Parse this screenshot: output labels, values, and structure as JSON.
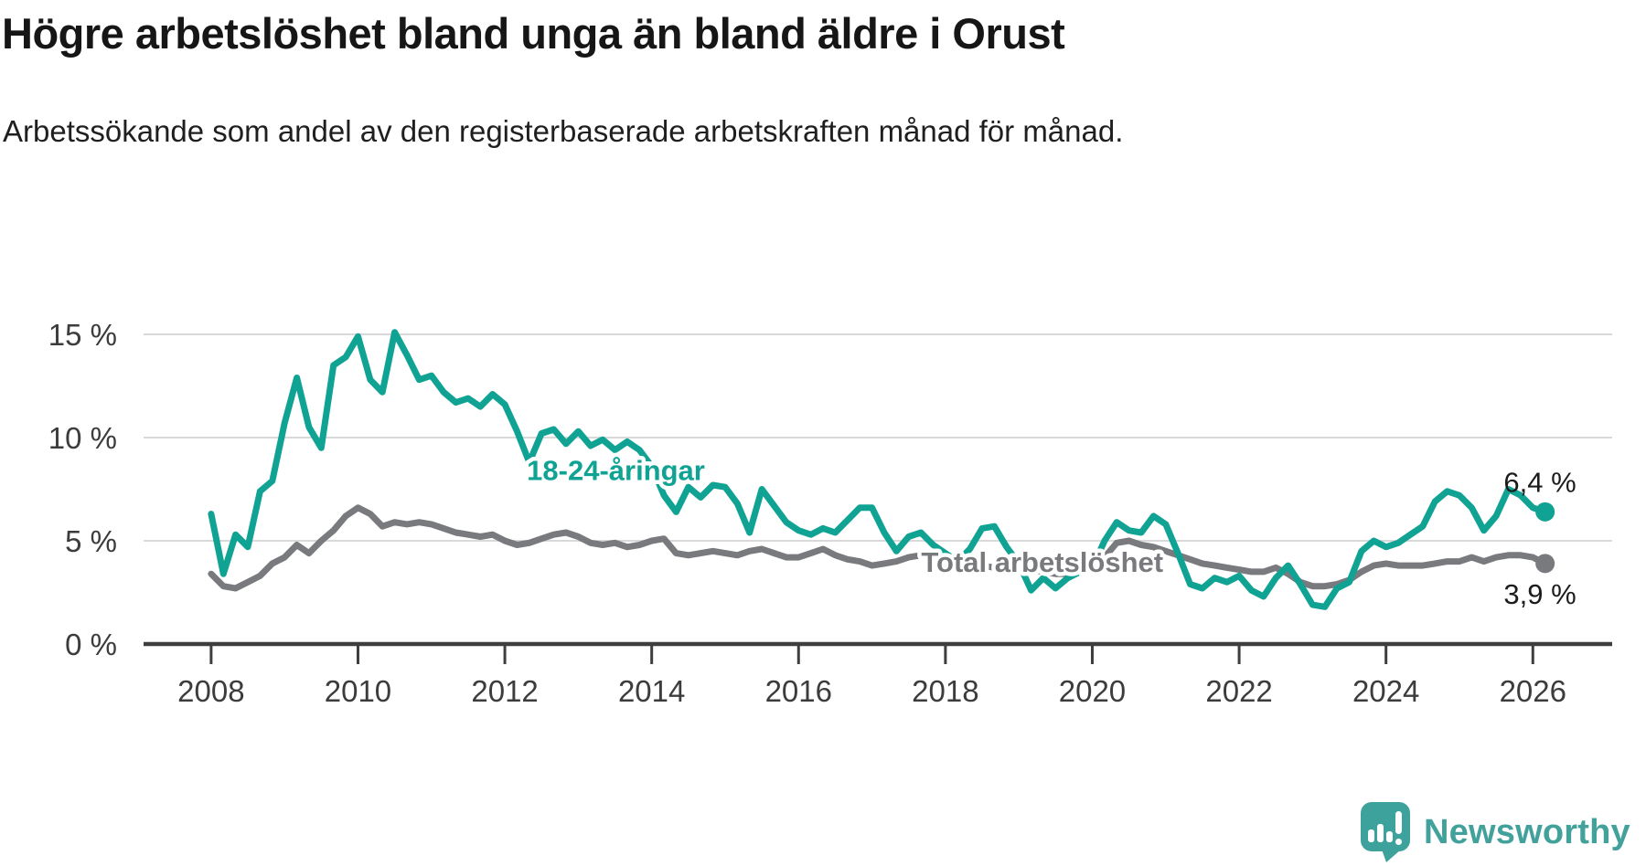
{
  "title": "Högre arbetslöshet bland unga än bland äldre i Orust",
  "subtitle": "Arbetssökande som andel av den registerbaserade arbetskraften månad för månad.",
  "chart_data": {
    "type": "line",
    "title": "Högre arbetslöshet bland unga än bland äldre i Orust",
    "x_unit": "year (monthly data)",
    "x_start": 2008.0,
    "x_step_years": 0.1666667,
    "xlim": [
      2007.08,
      2027.08
    ],
    "ylim": [
      0,
      15
    ],
    "grid": "horizontal",
    "x_ticks": [
      2008,
      2010,
      2012,
      2014,
      2016,
      2018,
      2020,
      2022,
      2024,
      2026
    ],
    "y_ticks": [
      {
        "value": 0,
        "label": "0 %"
      },
      {
        "value": 5,
        "label": "5 %"
      },
      {
        "value": 10,
        "label": "10 %"
      },
      {
        "value": 15,
        "label": "15 %"
      }
    ],
    "colors": {
      "grid": "#d9d9d9",
      "axis": "#3e3e3e",
      "axis_text": "#3c3c3c",
      "end_label_text": "#1c1c1c"
    },
    "series": [
      {
        "name": "Total arbetslöshet",
        "color": "#797a7d",
        "inline_label": {
          "text": "Total arbetslöshet",
          "x_year": 2017.67,
          "baseline_pct": 3.5
        },
        "end_label": "3,9 %",
        "end_value": 3.9,
        "values": [
          3.4,
          2.8,
          2.7,
          3.0,
          3.3,
          3.9,
          4.2,
          4.8,
          4.4,
          5.0,
          5.5,
          6.2,
          6.6,
          6.3,
          5.7,
          5.9,
          5.8,
          5.9,
          5.8,
          5.6,
          5.4,
          5.3,
          5.2,
          5.3,
          5.0,
          4.8,
          4.9,
          5.1,
          5.3,
          5.4,
          5.2,
          4.9,
          4.8,
          4.9,
          4.7,
          4.8,
          5.0,
          5.1,
          4.4,
          4.3,
          4.4,
          4.5,
          4.4,
          4.3,
          4.5,
          4.6,
          4.4,
          4.2,
          4.2,
          4.4,
          4.6,
          4.3,
          4.1,
          4.0,
          3.8,
          3.9,
          4.0,
          4.2,
          4.3,
          4.1,
          4.0,
          4.0,
          3.9,
          3.8,
          3.7,
          3.7,
          3.6,
          3.6,
          3.5,
          3.4,
          3.4,
          3.5,
          3.6,
          4.2,
          4.9,
          5.0,
          4.8,
          4.7,
          4.5,
          4.3,
          4.1,
          3.9,
          3.8,
          3.7,
          3.6,
          3.5,
          3.5,
          3.7,
          3.4,
          3.0,
          2.8,
          2.8,
          2.9,
          3.1,
          3.5,
          3.8,
          3.9,
          3.8,
          3.8,
          3.8,
          3.9,
          4.0,
          4.0,
          4.2,
          4.0,
          4.2,
          4.3,
          4.3,
          4.2,
          3.9
        ]
      },
      {
        "name": "18-24-åringar",
        "color": "#10a394",
        "inline_label": {
          "text": "18-24-åringar",
          "x_year": 2012.3,
          "baseline_pct": 7.95
        },
        "end_label": "6,4 %",
        "end_value": 6.4,
        "values": [
          6.3,
          3.4,
          5.3,
          4.7,
          7.4,
          7.9,
          10.7,
          12.9,
          10.5,
          9.5,
          13.5,
          13.9,
          14.9,
          12.8,
          12.2,
          15.1,
          14.0,
          12.8,
          13.0,
          12.2,
          11.7,
          11.9,
          11.5,
          12.1,
          11.6,
          10.3,
          8.8,
          10.2,
          10.4,
          9.7,
          10.3,
          9.6,
          9.9,
          9.4,
          9.8,
          9.4,
          8.6,
          7.2,
          6.4,
          7.6,
          7.1,
          7.7,
          7.6,
          6.8,
          5.4,
          7.5,
          6.7,
          5.9,
          5.5,
          5.3,
          5.6,
          5.4,
          6.0,
          6.6,
          6.6,
          5.4,
          4.5,
          5.2,
          5.4,
          4.8,
          4.4,
          4.0,
          4.6,
          5.6,
          5.7,
          4.7,
          3.9,
          2.6,
          3.2,
          2.7,
          3.2,
          3.5,
          3.7,
          5.0,
          5.9,
          5.5,
          5.4,
          6.2,
          5.8,
          4.4,
          2.9,
          2.7,
          3.2,
          3.0,
          3.3,
          2.6,
          2.3,
          3.2,
          3.8,
          2.9,
          1.9,
          1.8,
          2.7,
          3.0,
          4.5,
          5.0,
          4.7,
          4.9,
          5.3,
          5.7,
          6.9,
          7.4,
          7.2,
          6.6,
          5.5,
          6.2,
          7.5,
          7.2,
          6.6,
          6.4
        ]
      }
    ]
  },
  "branding": {
    "text": "Newsworthy",
    "color": "#43a19c",
    "icon": "newsworthy-bubble-barchart-icon"
  }
}
